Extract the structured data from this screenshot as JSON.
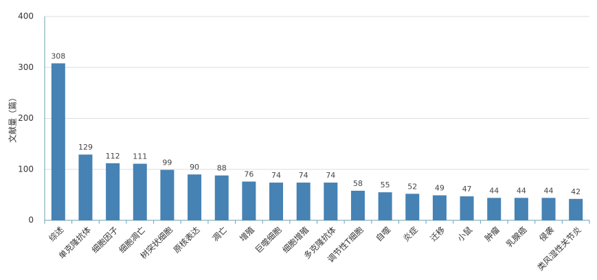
{
  "chart_data": {
    "type": "bar",
    "y_label": "文献量（篇）",
    "categories": [
      "综述",
      "单克隆抗体",
      "细胞因子",
      "细胞凋亡",
      "树突状细胞",
      "原核表达",
      "凋亡",
      "增殖",
      "巨噬细胞",
      "细胞增殖",
      "多克隆抗体",
      "调节性T细胞",
      "自噬",
      "炎症",
      "迁移",
      "小鼠",
      "肿瘤",
      "乳腺癌",
      "侵袭",
      "类风湿性关节炎"
    ],
    "values": [
      308,
      129,
      112,
      111,
      99,
      90,
      88,
      76,
      74,
      74,
      74,
      58,
      55,
      52,
      49,
      47,
      44,
      44,
      44,
      42
    ],
    "color": "#4682b4",
    "ylim": [
      0,
      400
    ],
    "yticks": [
      0,
      100,
      200,
      300,
      400
    ],
    "grid": true
  }
}
